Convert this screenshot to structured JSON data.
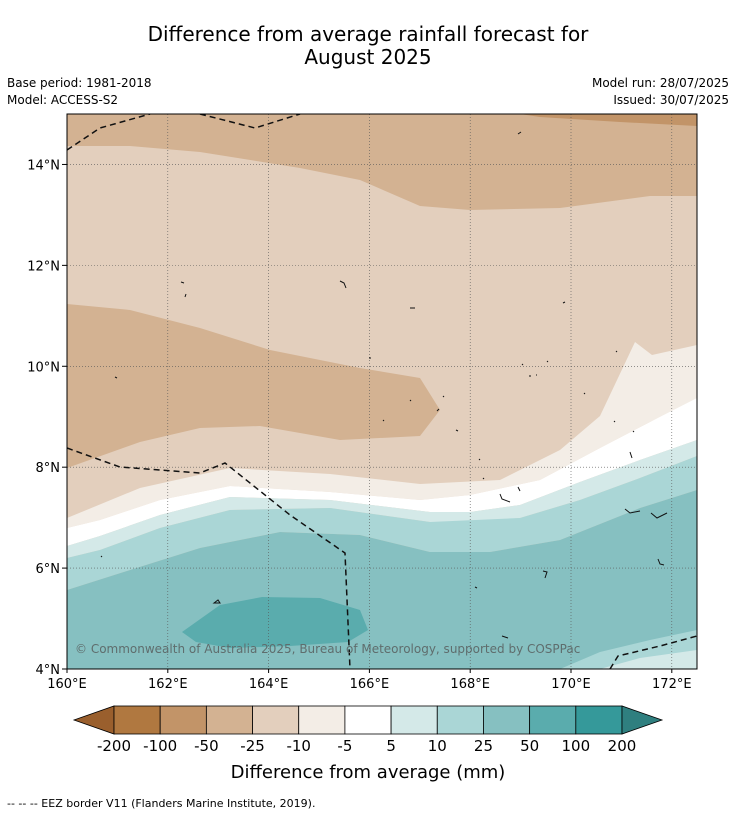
{
  "title": {
    "line1": "Difference from average rainfall forecast for",
    "line2": "August 2025"
  },
  "meta": {
    "base_period": "Base period: 1981-2018",
    "model": "Model: ACCESS-S2",
    "model_run": "Model run: 28/07/2025",
    "issued": "Issued: 30/07/2025"
  },
  "map": {
    "lon_range": [
      160,
      172.5
    ],
    "lat_range": [
      4,
      15
    ],
    "lat_ticks": [
      {
        "lat": 14,
        "label": "14°N"
      },
      {
        "lat": 12,
        "label": "12°N"
      },
      {
        "lat": 10,
        "label": "10°N"
      },
      {
        "lat": 8,
        "label": "8°N"
      },
      {
        "lat": 6,
        "label": "6°N"
      },
      {
        "lat": 4,
        "label": "4°N"
      }
    ],
    "lon_ticks": [
      {
        "lon": 160,
        "label": "160°E"
      },
      {
        "lon": 162,
        "label": "162°E"
      },
      {
        "lon": 164,
        "label": "164°E"
      },
      {
        "lon": 166,
        "label": "166°E"
      },
      {
        "lon": 168,
        "label": "168°E"
      },
      {
        "lon": 170,
        "label": "170°E"
      },
      {
        "lon": 172,
        "label": "172°E"
      }
    ],
    "gridlines": true,
    "copyright": "© Commonwealth of Australia 2025, Bureau of Meteorology, supported by COSPPac"
  },
  "colorbar": {
    "colors": [
      "#9a5f2d",
      "#b07840",
      "#c29468",
      "#d3b292",
      "#e3cfbd",
      "#f3ede6",
      "#ffffff",
      "#d4e9e8",
      "#aad6d6",
      "#86c0c1",
      "#5aacad",
      "#35999a",
      "#2f7f7f"
    ],
    "tick_labels": [
      "-200",
      "-100",
      "-50",
      "-25",
      "-10",
      "-5",
      "5",
      "10",
      "25",
      "50",
      "100",
      "200"
    ],
    "label": "Difference from average (mm)"
  },
  "footnote": "--  --  -- EEZ border V11 (Flanders Marine Institute, 2019)."
}
